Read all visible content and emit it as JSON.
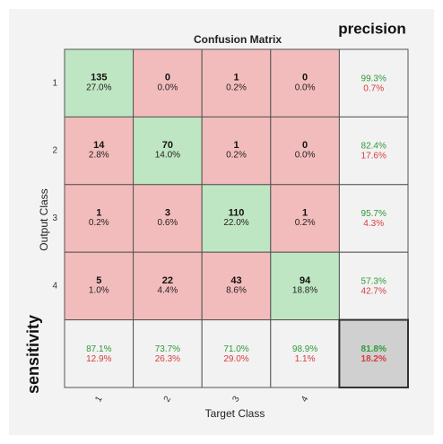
{
  "title": "Confusion Matrix",
  "precision_label": "precision",
  "sensitivity_label": "sensitivity",
  "y_label": "Output Class",
  "x_label": "Target Class",
  "row_labels": [
    "1",
    "2",
    "3",
    "4"
  ],
  "col_labels": [
    "1",
    "2",
    "3",
    "4"
  ],
  "cells": [
    [
      [
        "135",
        "27.0%"
      ],
      [
        "0",
        "0.0%"
      ],
      [
        "1",
        "0.2%"
      ],
      [
        "0",
        "0.0%"
      ]
    ],
    [
      [
        "14",
        "2.8%"
      ],
      [
        "70",
        "14.0%"
      ],
      [
        "1",
        "0.2%"
      ],
      [
        "0",
        "0.0%"
      ]
    ],
    [
      [
        "1",
        "0.2%"
      ],
      [
        "3",
        "0.6%"
      ],
      [
        "110",
        "22.0%"
      ],
      [
        "1",
        "0.2%"
      ]
    ],
    [
      [
        "5",
        "1.0%"
      ],
      [
        "22",
        "4.4%"
      ],
      [
        "43",
        "8.6%"
      ],
      [
        "94",
        "18.8%"
      ]
    ]
  ],
  "precision": [
    [
      "99.3%",
      "0.7%"
    ],
    [
      "82.4%",
      "17.6%"
    ],
    [
      "95.7%",
      "4.3%"
    ],
    [
      "57.3%",
      "42.7%"
    ]
  ],
  "sensitivity": [
    [
      "87.1%",
      "12.9%"
    ],
    [
      "73.7%",
      "26.3%"
    ],
    [
      "71.0%",
      "29.0%"
    ],
    [
      "98.9%",
      "1.1%"
    ]
  ],
  "overall": [
    "81.8%",
    "18.2%"
  ]
}
